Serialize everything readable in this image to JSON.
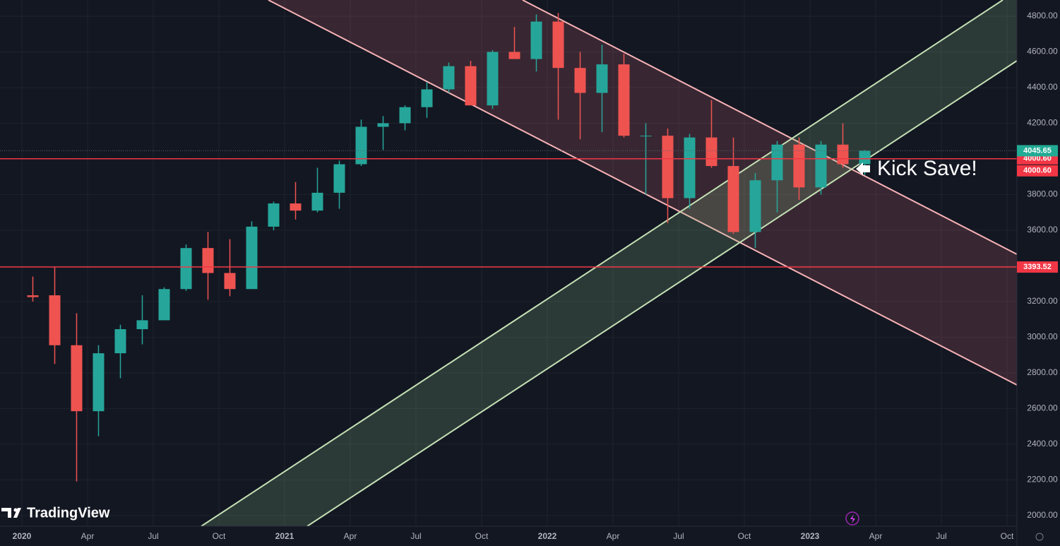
{
  "chart_data": {
    "type": "candlestick",
    "x": [
      "2020-01",
      "2020-02",
      "2020-03",
      "2020-04",
      "2020-05",
      "2020-06",
      "2020-07",
      "2020-08",
      "2020-09",
      "2020-10",
      "2020-11",
      "2020-12",
      "2021-01",
      "2021-02",
      "2021-03",
      "2021-04",
      "2021-05",
      "2021-06",
      "2021-07",
      "2021-08",
      "2021-09",
      "2021-10",
      "2021-11",
      "2021-12",
      "2022-01",
      "2022-02",
      "2022-03",
      "2022-04",
      "2022-05",
      "2022-06",
      "2022-07",
      "2022-08",
      "2022-09",
      "2022-10",
      "2022-11",
      "2022-12",
      "2023-01",
      "2023-02",
      "2023-03"
    ],
    "open": [
      3235,
      3235,
      2955,
      2585,
      2910,
      3045,
      3095,
      3270,
      3500,
      3360,
      3270,
      3620,
      3750,
      3710,
      3810,
      3970,
      4180,
      4200,
      4290,
      4390,
      4520,
      4300,
      4600,
      4560,
      4770,
      4510,
      4370,
      4530,
      4130,
      4130,
      3780,
      4120,
      3960,
      3590,
      3880,
      4080,
      3840,
      4080,
      3970
    ],
    "high": [
      3340,
      3395,
      3135,
      2955,
      3070,
      3235,
      3280,
      3520,
      3590,
      3550,
      3650,
      3760,
      3870,
      3950,
      3990,
      4220,
      4240,
      4300,
      4430,
      4540,
      4550,
      4610,
      4740,
      4810,
      4818,
      4600,
      4640,
      4590,
      4200,
      4170,
      4140,
      4330,
      4120,
      3920,
      4100,
      4120,
      4100,
      4200,
      4050
    ],
    "low": [
      3200,
      2850,
      2191,
      2445,
      2770,
      2960,
      3100,
      3260,
      3210,
      3230,
      3280,
      3600,
      3660,
      3700,
      3720,
      3960,
      4050,
      4160,
      4230,
      4370,
      4300,
      4280,
      4560,
      4490,
      4220,
      4110,
      4150,
      4120,
      3800,
      3640,
      3720,
      3950,
      3580,
      3500,
      3700,
      3770,
      3800,
      3950,
      3910
    ],
    "close": [
      3225,
      2955,
      2585,
      2910,
      3045,
      3095,
      3270,
      3500,
      3360,
      3270,
      3620,
      3750,
      3710,
      3810,
      3970,
      4180,
      4200,
      4290,
      4390,
      4520,
      4300,
      4600,
      4560,
      4770,
      4510,
      4370,
      4530,
      4130,
      4130,
      3780,
      4120,
      3960,
      3590,
      3880,
      4080,
      3840,
      4080,
      3970,
      4045.65
    ],
    "up_color": "#26a69a",
    "down_color": "#ef5350",
    "ylim": [
      1940,
      4891
    ],
    "yticks": [
      {
        "value": 2000,
        "label": "2000.00"
      },
      {
        "value": 2200,
        "label": "2200.00"
      },
      {
        "value": 2400,
        "label": "2400.00"
      },
      {
        "value": 2600,
        "label": "2600.00"
      },
      {
        "value": 2800,
        "label": "2800.00"
      },
      {
        "value": 3000,
        "label": "3000.00"
      },
      {
        "value": 3200,
        "label": "3200.00"
      },
      {
        "value": 3400,
        "label": "3400.00"
      },
      {
        "value": 3600,
        "label": "3600.00"
      },
      {
        "value": 3800,
        "label": "3800.00"
      },
      {
        "value": 4000,
        "label": "4000.00"
      },
      {
        "value": 4200,
        "label": "4200.00"
      },
      {
        "value": 4400,
        "label": "4400.00"
      },
      {
        "value": 4600,
        "label": "4600.00"
      },
      {
        "value": 4800,
        "label": "4800.00"
      }
    ],
    "xticks": [
      {
        "value": "2020-01",
        "label": "2020"
      },
      {
        "value": "2020-04",
        "label": "Apr"
      },
      {
        "value": "2020-07",
        "label": "Jul"
      },
      {
        "value": "2020-10",
        "label": "Oct"
      },
      {
        "value": "2021-01",
        "label": "2021"
      },
      {
        "value": "2021-04",
        "label": "Apr"
      },
      {
        "value": "2021-07",
        "label": "Jul"
      },
      {
        "value": "2021-10",
        "label": "Oct"
      },
      {
        "value": "2022-01",
        "label": "2022"
      },
      {
        "value": "2022-04",
        "label": "Apr"
      },
      {
        "value": "2022-07",
        "label": "Jul"
      },
      {
        "value": "2022-10",
        "label": "Oct"
      },
      {
        "value": "2023-01",
        "label": "2023"
      },
      {
        "value": "2023-04",
        "label": "Apr"
      },
      {
        "value": "2023-07",
        "label": "Jul"
      },
      {
        "value": "2023-10",
        "label": "Oct"
      }
    ],
    "grid": true,
    "hlines": [
      {
        "value": 4000.6,
        "label": "4000.60",
        "color": "#f23645"
      },
      {
        "value": 3393.52,
        "label": "3393.52",
        "color": "#f23645"
      }
    ],
    "price_labels": [
      {
        "value": 4045.65,
        "label": "4045.65",
        "color": "#22ab94"
      },
      {
        "value": 4000.6,
        "label": "4000.60",
        "color": "#f23645"
      }
    ],
    "annotation": "Kick Save!",
    "watermark": "TradingView"
  }
}
